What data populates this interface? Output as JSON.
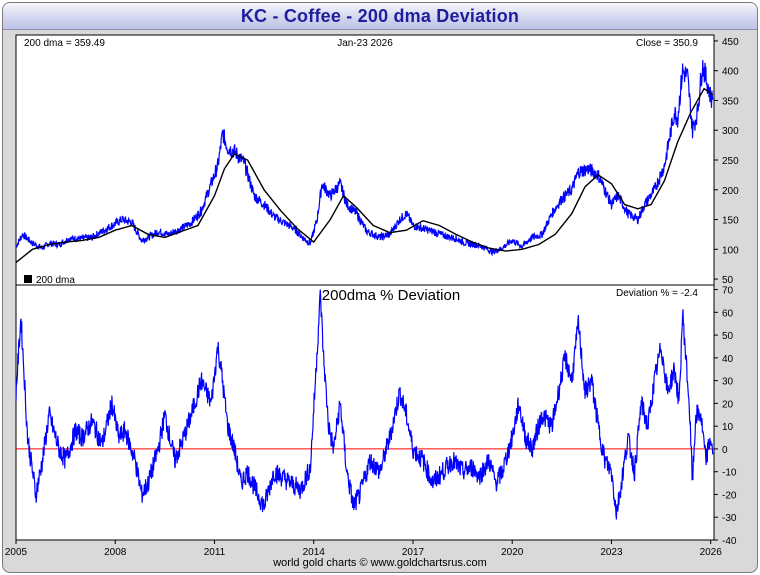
{
  "title": "KC  -  Coffee - 200 dma Deviation",
  "footer": "world gold charts © www.goldchartsrus.com",
  "colors": {
    "price": "#0000ff",
    "dma": "#000000",
    "zero_line": "#ff0000",
    "title_text": "#1f1f9e"
  },
  "chart_data": [
    {
      "type": "line",
      "header_left": "200 dma = 359.49",
      "header_center": "Jan-23  2026",
      "header_right": "Close = 350.9",
      "legend_label": "200 dma",
      "legend_position": "bottom-left",
      "ylim": [
        40,
        460
      ],
      "yticks": [
        50,
        100,
        150,
        200,
        250,
        300,
        350,
        400,
        450
      ],
      "xlim": [
        2005,
        2026.1
      ],
      "grid": false,
      "series": [
        {
          "role": "price",
          "x": [
            2005.0,
            2005.2,
            2005.5,
            2005.8,
            2006.0,
            2006.3,
            2006.6,
            2007.0,
            2007.3,
            2007.6,
            2007.9,
            2008.2,
            2008.5,
            2008.8,
            2009.0,
            2009.3,
            2009.6,
            2010.0,
            2010.3,
            2010.6,
            2010.9,
            2011.1,
            2011.25,
            2011.4,
            2011.6,
            2011.9,
            2012.2,
            2012.5,
            2012.8,
            2013.1,
            2013.4,
            2013.7,
            2013.9,
            2014.1,
            2014.25,
            2014.5,
            2014.8,
            2015.0,
            2015.3,
            2015.6,
            2016.0,
            2016.3,
            2016.6,
            2016.8,
            2017.0,
            2017.3,
            2017.6,
            2018.0,
            2018.3,
            2018.6,
            2018.9,
            2019.2,
            2019.4,
            2019.7,
            2020.0,
            2020.3,
            2020.6,
            2020.9,
            2021.2,
            2021.5,
            2021.8,
            2022.0,
            2022.3,
            2022.6,
            2022.8,
            2023.0,
            2023.2,
            2023.5,
            2023.8,
            2024.0,
            2024.3,
            2024.6,
            2024.9,
            2025.0,
            2025.15,
            2025.3,
            2025.45,
            2025.6,
            2025.75,
            2025.9,
            2026.0,
            2026.06
          ],
          "y": [
            105,
            125,
            110,
            102,
            110,
            108,
            118,
            118,
            120,
            130,
            140,
            150,
            145,
            115,
            120,
            130,
            125,
            135,
            145,
            165,
            210,
            240,
            295,
            270,
            265,
            245,
            190,
            175,
            155,
            145,
            135,
            118,
            110,
            150,
            210,
            190,
            210,
            175,
            160,
            130,
            120,
            125,
            150,
            160,
            140,
            135,
            130,
            122,
            118,
            110,
            108,
            102,
            95,
            102,
            115,
            105,
            120,
            125,
            160,
            185,
            200,
            230,
            235,
            225,
            200,
            175,
            190,
            160,
            150,
            175,
            200,
            240,
            330,
            320,
            400,
            390,
            300,
            330,
            410,
            380,
            355,
            350.9
          ]
        },
        {
          "role": "dma",
          "name": "200 dma",
          "x": [
            2005.0,
            2005.5,
            2006.0,
            2006.5,
            2007.0,
            2007.5,
            2008.0,
            2008.5,
            2009.0,
            2009.5,
            2010.0,
            2010.5,
            2011.0,
            2011.3,
            2011.6,
            2012.0,
            2012.5,
            2013.0,
            2013.5,
            2014.0,
            2014.5,
            2014.9,
            2015.3,
            2015.8,
            2016.3,
            2016.8,
            2017.3,
            2017.8,
            2018.3,
            2018.8,
            2019.3,
            2019.8,
            2020.3,
            2020.8,
            2021.3,
            2021.8,
            2022.2,
            2022.6,
            2023.0,
            2023.4,
            2023.8,
            2024.2,
            2024.6,
            2025.0,
            2025.4,
            2025.8,
            2026.06
          ],
          "y": [
            78,
            100,
            108,
            112,
            115,
            120,
            132,
            140,
            125,
            120,
            130,
            140,
            190,
            235,
            260,
            250,
            200,
            165,
            135,
            112,
            150,
            190,
            170,
            140,
            128,
            132,
            148,
            140,
            125,
            112,
            102,
            97,
            100,
            108,
            125,
            160,
            205,
            225,
            210,
            175,
            168,
            175,
            215,
            280,
            330,
            370,
            359.49
          ]
        }
      ]
    },
    {
      "type": "line",
      "title": "200dma  %  Deviation",
      "header_right": "Deviation % = -2.4",
      "ylim": [
        -40,
        72
      ],
      "yticks": [
        -40,
        -30,
        -20,
        -10,
        0,
        10,
        20,
        30,
        40,
        50,
        60,
        70
      ],
      "xlim": [
        2005,
        2026.1
      ],
      "xticks": [
        2005,
        2008,
        2011,
        2014,
        2017,
        2020,
        2023,
        2026
      ],
      "zero_line": 0,
      "grid": false,
      "series": [
        {
          "role": "deviation",
          "x": [
            2005.0,
            2005.15,
            2005.35,
            2005.6,
            2005.8,
            2006.0,
            2006.3,
            2006.5,
            2006.8,
            2007.0,
            2007.3,
            2007.6,
            2007.9,
            2008.1,
            2008.3,
            2008.6,
            2008.8,
            2009.0,
            2009.3,
            2009.5,
            2009.8,
            2010.0,
            2010.3,
            2010.6,
            2010.9,
            2011.1,
            2011.2,
            2011.4,
            2011.6,
            2011.8,
            2012.0,
            2012.3,
            2012.5,
            2012.8,
            2013.0,
            2013.3,
            2013.6,
            2013.9,
            2014.05,
            2014.2,
            2014.3,
            2014.45,
            2014.6,
            2014.8,
            2015.0,
            2015.2,
            2015.4,
            2015.7,
            2016.0,
            2016.3,
            2016.6,
            2016.8,
            2017.0,
            2017.3,
            2017.6,
            2017.9,
            2018.2,
            2018.5,
            2018.8,
            2019.0,
            2019.3,
            2019.5,
            2019.7,
            2019.9,
            2020.0,
            2020.2,
            2020.4,
            2020.6,
            2020.9,
            2021.2,
            2021.4,
            2021.6,
            2021.8,
            2022.0,
            2022.2,
            2022.4,
            2022.6,
            2022.8,
            2023.0,
            2023.15,
            2023.3,
            2023.5,
            2023.7,
            2023.9,
            2024.1,
            2024.3,
            2024.5,
            2024.7,
            2024.9,
            2025.05,
            2025.15,
            2025.25,
            2025.35,
            2025.45,
            2025.55,
            2025.7,
            2025.85,
            2026.0,
            2026.06
          ],
          "y": [
            25,
            58,
            5,
            -20,
            -5,
            15,
            0,
            -5,
            8,
            5,
            12,
            2,
            20,
            5,
            8,
            -5,
            -20,
            -15,
            0,
            15,
            -5,
            2,
            15,
            30,
            20,
            45,
            35,
            10,
            0,
            -15,
            -10,
            -20,
            -25,
            -10,
            -12,
            -15,
            -18,
            -8,
            30,
            68,
            40,
            10,
            0,
            20,
            -10,
            -25,
            -20,
            -5,
            -10,
            5,
            25,
            15,
            0,
            -5,
            -15,
            -10,
            -5,
            -10,
            -8,
            -12,
            -5,
            -15,
            -10,
            0,
            5,
            20,
            5,
            0,
            15,
            10,
            25,
            40,
            30,
            55,
            25,
            30,
            10,
            -5,
            -10,
            -28,
            -15,
            5,
            -10,
            20,
            10,
            30,
            45,
            25,
            35,
            20,
            60,
            40,
            20,
            -15,
            15,
            15,
            -5,
            5,
            -2.4
          ]
        }
      ]
    }
  ]
}
